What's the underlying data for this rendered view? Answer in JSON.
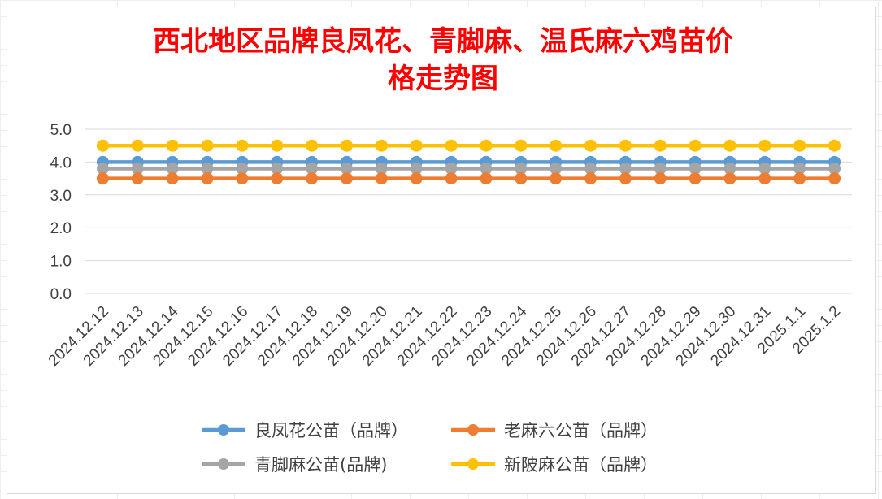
{
  "chart_data": {
    "type": "line",
    "title_line1": "西北地区品牌良凤花、青脚麻、温氏麻六鸡苗价",
    "title_line2": "格走势图",
    "title_color": "#ff0000",
    "categories": [
      "2024.12.12",
      "2024.12.13",
      "2024.12.14",
      "2024.12.15",
      "2024.12.16",
      "2024.12.17",
      "2024.12.18",
      "2024.12.19",
      "2024.12.20",
      "2024.12.21",
      "2024.12.22",
      "2024.12.23",
      "2024.12.24",
      "2024.12.25",
      "2024.12.26",
      "2024.12.27",
      "2024.12.28",
      "2024.12.29",
      "2024.12.30",
      "2024.12.31",
      "2025.1.1",
      "2025.1.2"
    ],
    "y_ticks": [
      "0.0",
      "1.0",
      "2.0",
      "3.0",
      "4.0",
      "5.0"
    ],
    "ylim": [
      0,
      5
    ],
    "grid": true,
    "legend_position": "bottom",
    "series": [
      {
        "name": "良凤花公苗（品牌）",
        "color": "#5b9bd5",
        "values": [
          4.0,
          4.0,
          4.0,
          4.0,
          4.0,
          4.0,
          4.0,
          4.0,
          4.0,
          4.0,
          4.0,
          4.0,
          4.0,
          4.0,
          4.0,
          4.0,
          4.0,
          4.0,
          4.0,
          4.0,
          4.0,
          4.0
        ]
      },
      {
        "name": "老麻六公苗（品牌）",
        "color": "#ed7d31",
        "values": [
          3.5,
          3.5,
          3.5,
          3.5,
          3.5,
          3.5,
          3.5,
          3.5,
          3.5,
          3.5,
          3.5,
          3.5,
          3.5,
          3.5,
          3.5,
          3.5,
          3.5,
          3.5,
          3.5,
          3.5,
          3.5,
          3.5
        ]
      },
      {
        "name": "青脚麻公苗(品牌)",
        "color": "#a5a5a5",
        "values": [
          3.8,
          3.8,
          3.8,
          3.8,
          3.8,
          3.8,
          3.8,
          3.8,
          3.8,
          3.8,
          3.8,
          3.8,
          3.8,
          3.8,
          3.8,
          3.8,
          3.8,
          3.8,
          3.8,
          3.8,
          3.8,
          3.8
        ]
      },
      {
        "name": "新陂麻公苗（品牌）",
        "color": "#ffc000",
        "values": [
          4.5,
          4.5,
          4.5,
          4.5,
          4.5,
          4.5,
          4.5,
          4.5,
          4.5,
          4.5,
          4.5,
          4.5,
          4.5,
          4.5,
          4.5,
          4.5,
          4.5,
          4.5,
          4.5,
          4.5,
          4.5,
          4.5
        ]
      }
    ]
  }
}
